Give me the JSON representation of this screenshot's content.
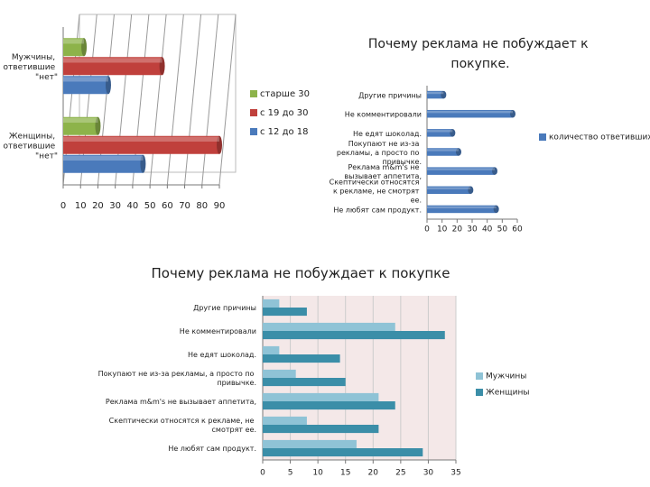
{
  "chart_data": [
    {
      "type": "bar",
      "categories": [
        "Мужчины, ответившие \"нет\"",
        "Женщины, ответившие \"нет\""
      ],
      "series": [
        {
          "name": "старше 30",
          "color": "#8db34a",
          "values": [
            12,
            20
          ]
        },
        {
          "name": "с 19 до 30",
          "color": "#c0403c",
          "values": [
            57,
            90
          ]
        },
        {
          "name": "с 12 до 18",
          "color": "#4a7abb",
          "values": [
            26,
            46
          ]
        }
      ],
      "xlim": [
        0,
        90
      ],
      "xticks": [
        0,
        10,
        20,
        30,
        40,
        50,
        60,
        70,
        80,
        90
      ],
      "grid": true
    },
    {
      "type": "bar",
      "title": "Почему реклама не побуждает к покупке.",
      "categories": [
        "Другие причины",
        "Не комментировали",
        "Не едят шоколад.",
        "Покупают не из-за рекламы, а просто по привычке.",
        "Реклама m&m's не вызывает аппетита,",
        "Скептически относятся к рекламе, не смотрят ее.",
        "Не любят сам продукт."
      ],
      "series": [
        {
          "name": "количество ответивших",
          "color": "#4a7abb",
          "values": [
            11,
            57,
            17,
            21,
            45,
            29,
            46
          ]
        }
      ],
      "xlim": [
        0,
        60
      ],
      "xticks": [
        0,
        10,
        20,
        30,
        40,
        50,
        60
      ],
      "grid": false
    },
    {
      "type": "bar",
      "title": "Почему реклама не побуждает к покупке",
      "categories": [
        "Другие причины",
        "Не комментировали",
        "Не едят шоколад.",
        "Покупают не из-за рекламы, а просто по привычке.",
        "Реклама m&m's не вызывает аппетита,",
        "Скептически относятся к рекламе, не смотрят ее.",
        "Не любят сам продукт."
      ],
      "series": [
        {
          "name": "Мужчины",
          "color": "#8fc3d6",
          "values": [
            3,
            24,
            3,
            6,
            21,
            8,
            17
          ]
        },
        {
          "name": "Женщины",
          "color": "#3b8ea8",
          "values": [
            8,
            33,
            14,
            15,
            24,
            21,
            29
          ]
        }
      ],
      "xlim": [
        0,
        35
      ],
      "xticks": [
        0,
        5,
        10,
        15,
        20,
        25,
        30,
        35
      ],
      "grid": true
    }
  ]
}
